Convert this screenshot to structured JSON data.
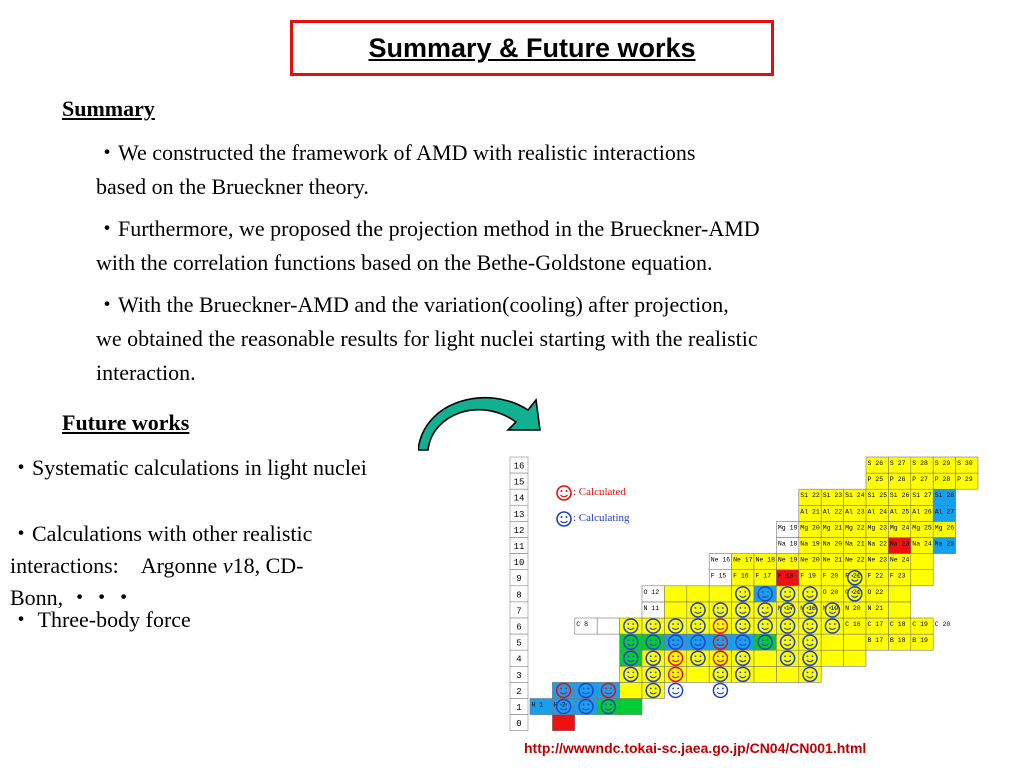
{
  "title": "Summary & Future works",
  "summary": {
    "heading": "Summary",
    "bullets": [
      {
        "line1": "・We constructed the framework of AMD with realistic interactions",
        "line2": "based on the Brueckner theory."
      },
      {
        "line1": "・Furthermore, we proposed the projection method in the Brueckner-AMD",
        "line2": "with the correlation functions based on the Bethe-Goldstone equation."
      },
      {
        "line1": "・With the Brueckner-AMD and the variation(cooling) after projection,",
        "line2": "we obtained the reasonable results for light nuclei starting with the realistic",
        "line3": "interaction."
      }
    ]
  },
  "future": {
    "heading": "Future works",
    "bullet1": "・Systematic calculations in light nuclei",
    "bullet2_line1": "・Calculations with other realistic",
    "bullet2_line2_a": "interactions:　Argonne ",
    "bullet2_line2_v": "v",
    "bullet2_line2_b": "18, CD-",
    "bullet2_line3": "Bonn, ・・・",
    "bullet3": "・ Three-body force"
  },
  "chart": {
    "z_labels": [
      "16",
      "15",
      "14",
      "13",
      "12",
      "11",
      "10",
      "9",
      "8",
      "7",
      "6",
      "5",
      "4",
      "3",
      "2",
      "1",
      "0"
    ],
    "legend_calculated": ": Calculated",
    "legend_calculating": ": Calculating",
    "colors": {
      "yellow": "#ffff00",
      "blue": "#18a0f0",
      "green": "#00cc33",
      "red": "#ee1111",
      "white": "#ffffff"
    },
    "visible_isotopes": [
      "S 26",
      "S 27",
      "S 28",
      "S 29",
      "S 30",
      "P 25",
      "P 26",
      "P 27",
      "P 28",
      "P 29",
      "Si 22",
      "Si 23",
      "Si 24",
      "Si 25",
      "Si 26",
      "Si 27",
      "Si 28",
      "Al 21",
      "Al 22",
      "Al 23",
      "Al 24",
      "Al 25",
      "Al 26",
      "Al 27",
      "Mg 19",
      "Mg 20",
      "Mg 21",
      "Mg 22",
      "Mg 23",
      "Mg 24",
      "Mg 25",
      "Mg 26",
      "Na 18",
      "Na 19",
      "Na 20",
      "Na 21",
      "Na 22",
      "Na 23",
      "Na 24",
      "Na 25",
      "Ne 16",
      "Ne 17",
      "Ne 18",
      "Ne 19",
      "Ne 20",
      "Ne 21",
      "Ne 22",
      "Ne 23",
      "Ne 24",
      "F 15",
      "F 16",
      "F 17",
      "F 18",
      "F 19",
      "F 20",
      "F 21",
      "F 22",
      "F 23",
      "O 12",
      "O 20",
      "O 21",
      "O 22",
      "N 11",
      "N 17",
      "N 18",
      "N 19",
      "N 20",
      "N 21",
      "C 8",
      "C 16",
      "C 17",
      "C 18",
      "C 19",
      "C 20",
      "B 17",
      "B 18",
      "B 19",
      "H 1",
      "H 2"
    ]
  },
  "url": "http://wwwndc.tokai-sc.jaea.go.jp/CN04/CN001.html"
}
